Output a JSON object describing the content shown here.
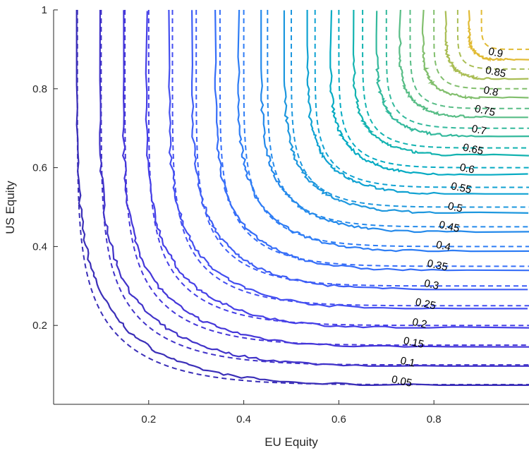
{
  "chart_data": {
    "type": "line",
    "subtype": "contour",
    "title": "",
    "xlabel": "EU Equity",
    "ylabel": "US Equity",
    "xlim": [
      0,
      1
    ],
    "ylim": [
      0,
      1
    ],
    "x_ticks": [
      "0.2",
      "0.4",
      "0.6",
      "0.8"
    ],
    "x_tick_values": [
      0.2,
      0.4,
      0.6,
      0.8
    ],
    "y_ticks": [
      "0.2",
      "0.4",
      "0.6",
      "0.8",
      "1"
    ],
    "y_tick_values": [
      0.2,
      0.4,
      0.6,
      0.8,
      1
    ],
    "grid": false,
    "legend": "none",
    "line_styles": {
      "empirical": "solid",
      "model": "dashed"
    },
    "colormap": "parula",
    "levels": [
      0.05,
      0.1,
      0.15,
      0.2,
      0.25,
      0.3,
      0.35,
      0.4,
      0.45,
      0.5,
      0.55,
      0.6,
      0.65,
      0.7,
      0.75,
      0.8,
      0.85,
      0.9
    ],
    "level_labels": [
      "0.05",
      "0.1",
      "0.15",
      "0.2",
      "0.25",
      "0.3",
      "0.35",
      "0.4",
      "0.45",
      "0.5",
      "0.55",
      "0.6",
      "0.65",
      "0.7",
      "0.75",
      "0.8",
      "0.85",
      "0.9"
    ],
    "colors": [
      "#3b2fb8",
      "#4133c9",
      "#4537d9",
      "#4640e7",
      "#444ff0",
      "#3e5ef6",
      "#366ef8",
      "#2e7df5",
      "#258aeb",
      "#1d97de",
      "#10a2d2",
      "#06abc3",
      "#13b3b0",
      "#33b99c",
      "#58bd86",
      "#82bf6e",
      "#aabe55",
      "#e1bb35"
    ]
  }
}
